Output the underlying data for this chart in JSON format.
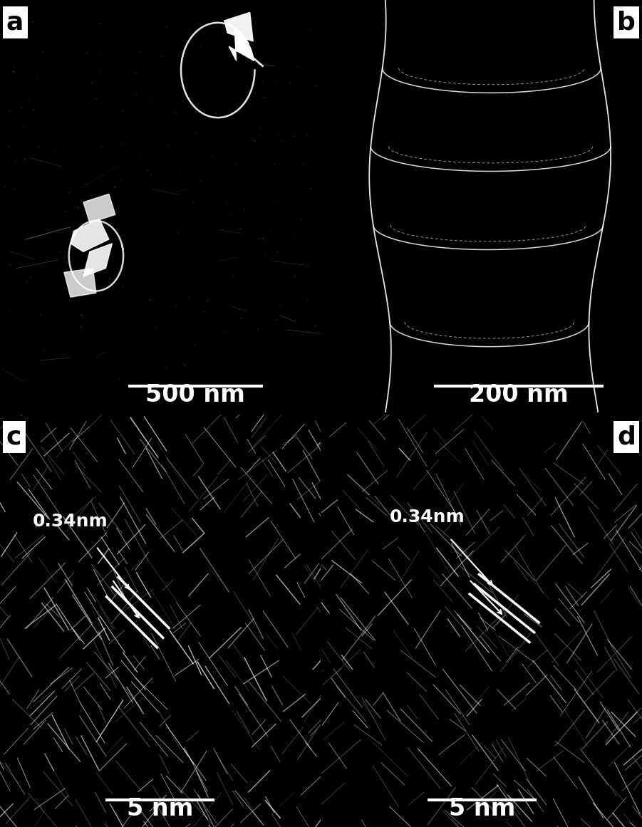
{
  "fig_width": 9.01,
  "fig_height": 11.61,
  "dpi": 100,
  "bg_color": "#000000",
  "panel_labels": [
    "a",
    "b",
    "c",
    "d"
  ],
  "scale_bars": [
    "500 nm",
    "200 nm",
    "5 nm",
    "5 nm"
  ],
  "annotations_cd": [
    "0.34nm",
    "0.34nm"
  ],
  "panel_label_fontsize": 26,
  "scalebar_fontsize": 24,
  "annotation_fontsize": 18,
  "label_text_color": "#000000",
  "label_bg_color": "#ffffff",
  "white": "#ffffff"
}
